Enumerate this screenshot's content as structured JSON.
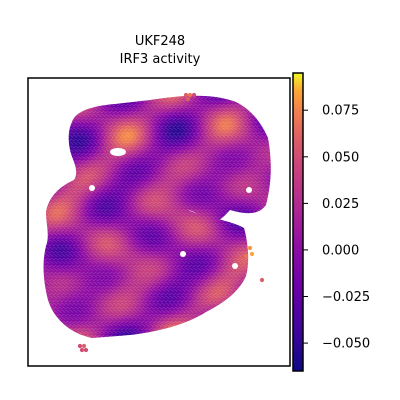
{
  "chart_data": {
    "type": "heatmap",
    "subtype": "spatial-spot-map",
    "title": "UKF248",
    "subtitle": "IRF3 activity",
    "colormap": "plasma",
    "colorbar": {
      "vmin": -0.065,
      "vmax": 0.095,
      "ticks": [
        "0.075",
        "0.050",
        "0.025",
        "0.000",
        "−0.025",
        "−0.050"
      ],
      "tick_values": [
        0.075,
        0.05,
        0.025,
        0.0,
        -0.025,
        -0.05
      ]
    },
    "axes": {
      "xticks": false,
      "yticks": false,
      "frame": true
    },
    "spots": {
      "shape": "tissue section, roughly square with an irregular left edge, a notch on the right side and a small gap near the upper-left",
      "value_range_observed": [
        -0.06,
        0.09
      ],
      "dominant_values": "mix of low (purple, about -0.03) and mid-high (orange, about 0.03 to 0.06) patches"
    }
  }
}
